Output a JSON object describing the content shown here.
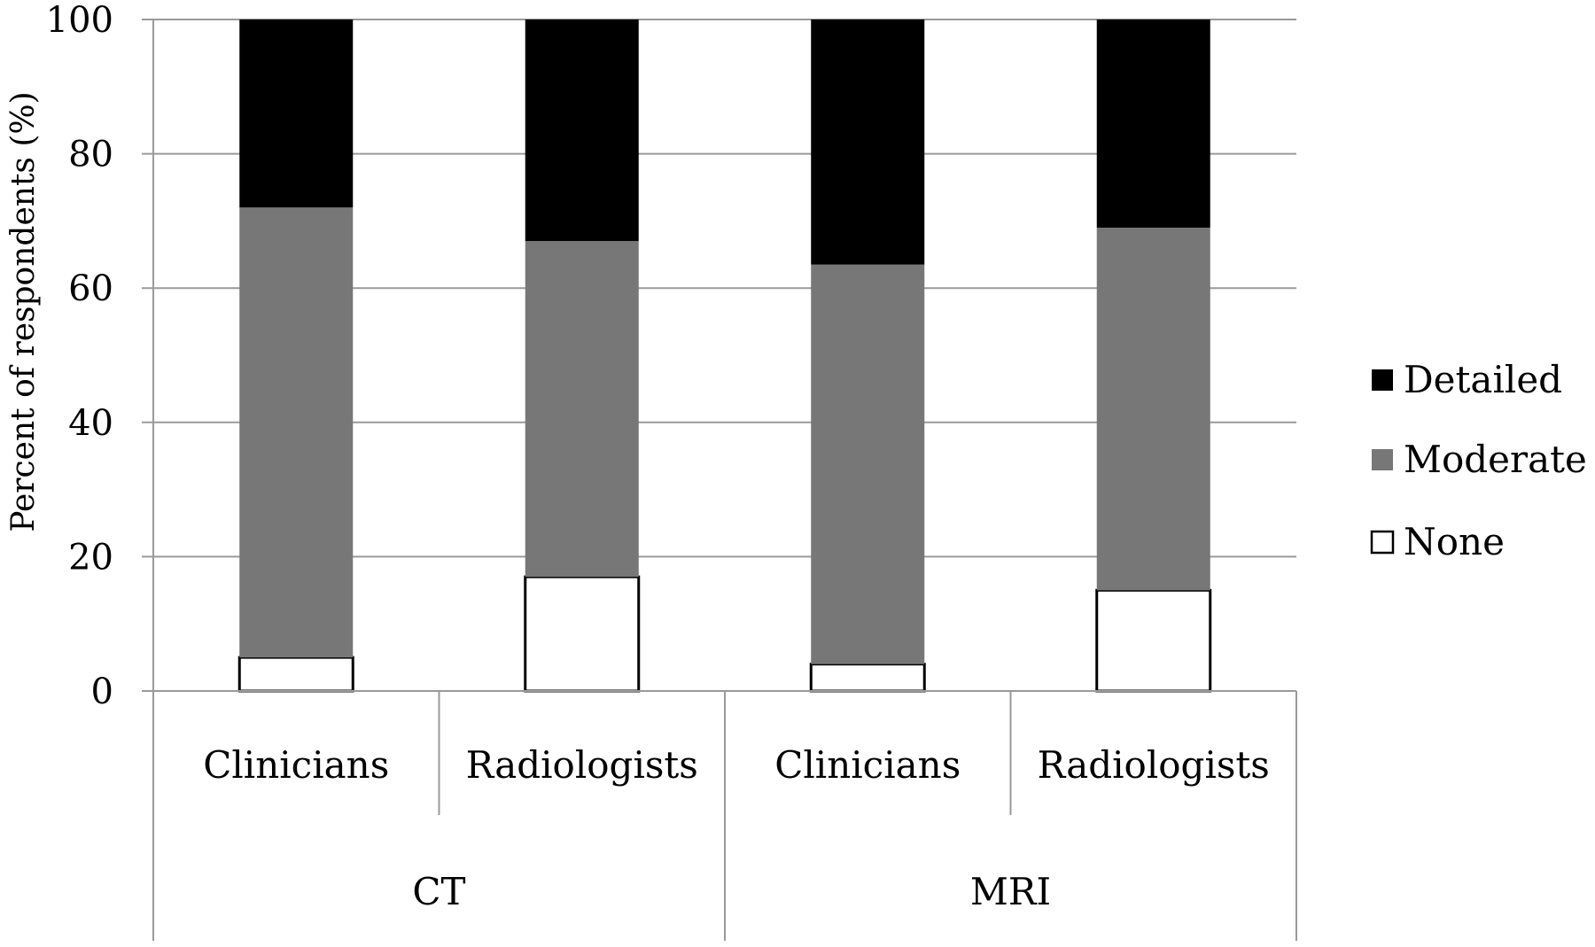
{
  "chart_data": {
    "type": "bar",
    "stacked": true,
    "ylabel": "Percent of respondents (%)",
    "ylim": [
      0,
      100
    ],
    "yticks": [
      "0",
      "20",
      "40",
      "60",
      "80",
      "100"
    ],
    "grid": true,
    "legend_position": "right",
    "groups": [
      "CT",
      "MRI"
    ],
    "categories": [
      "Clinicians",
      "Radiologists",
      "Clinicians",
      "Radiologists"
    ],
    "series": [
      {
        "name": "None",
        "color": "#ffffff",
        "values": [
          5,
          17,
          4,
          15
        ]
      },
      {
        "name": "Moderate",
        "color": "#777777",
        "values": [
          67,
          50,
          59.5,
          54
        ]
      },
      {
        "name": "Detailed",
        "color": "#000000",
        "values": [
          28,
          33,
          36.5,
          31
        ]
      }
    ],
    "legend_order": [
      "Detailed",
      "Moderate",
      "None"
    ]
  }
}
